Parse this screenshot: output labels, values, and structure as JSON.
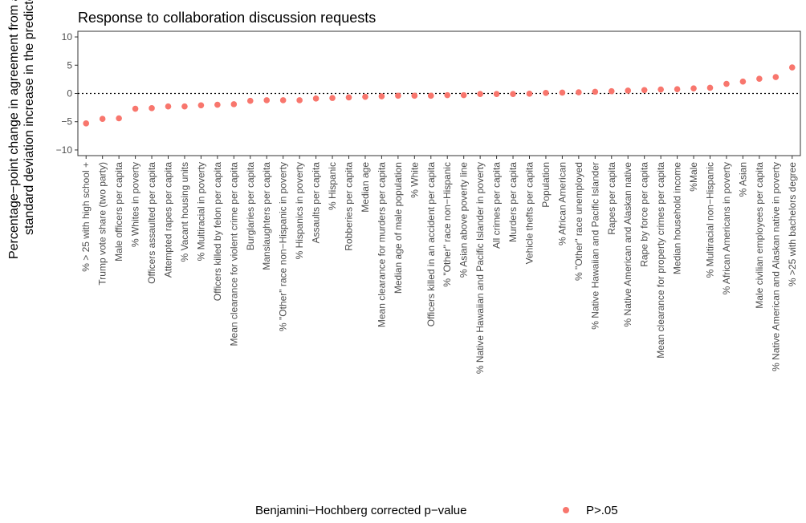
{
  "chart_data": {
    "type": "scatter",
    "title": "Response to collaboration discussion requests",
    "xlabel": "",
    "ylabel": "Percentage−point change in agreement from a one standard deviation increase in the predictor",
    "ylabel_lines": [
      "Percentage−point change in agreement from a one",
      "standard deviation increase in the predictor"
    ],
    "ylim": [
      -11,
      11
    ],
    "yticks": [
      10,
      5,
      0,
      -5,
      -10
    ],
    "ytick_labels": [
      "10",
      "5",
      "0",
      "−5",
      "−10"
    ],
    "reference_line": 0,
    "grid": false,
    "legend_position": "bottom",
    "legend_title": "Benjamini−Hochberg corrected p−value",
    "point_color": "#F8766D",
    "categories": [
      "% > 25 with high school +",
      "Trump vote share (two party)",
      "Male officers per capita",
      "% Whites in poverty",
      "Officers assaulted per capita",
      "Attempted rapes per capita",
      "% Vacant housing units",
      "% Multiracial in poverty",
      "Officers killed by felon per capita",
      "Mean clearance for violent crime per capita",
      "Burglaries per capita",
      "Manslaughters per capita",
      "% \"Other\" race non−Hispanic in poverty",
      "% Hispanics in poverty",
      "Assaults per capita",
      "% Hispanic",
      "Robberies per capita",
      "Median age",
      "Mean clearance for murders per capita",
      "Median age of male population",
      "% White",
      "Officers killed in an accident per capita",
      "% \"Other\" race non−Hispanic",
      "% Asian above poverty line",
      "% Native Hawaiian and Pacific Islander in poverty",
      "All crimes per capita",
      "Murders per capita",
      "Vehicle thefts per capita",
      "Population",
      "% African American",
      "% \"Other\" race unemployed",
      "% Native Hawaiian and Pacific Islander",
      "Rapes per capita",
      "% Native American and Alaskan native",
      "Rape by force per capita",
      "Mean clearance for property crimes per capita",
      "Median household income",
      "%Male",
      "% Multiracial non−Hispanic",
      "% African Americans in poverty",
      "% Asian",
      "Male civilian employees per capita",
      "% Native American and Alaskan native in poverty",
      "% >25 with bachelors degree"
    ],
    "series": [
      {
        "name": "P>.05",
        "values": [
          -5.3,
          -4.5,
          -4.4,
          -2.7,
          -2.6,
          -2.3,
          -2.3,
          -2.1,
          -2.0,
          -1.9,
          -1.3,
          -1.2,
          -1.2,
          -1.2,
          -0.9,
          -0.8,
          -0.7,
          -0.6,
          -0.5,
          -0.4,
          -0.4,
          -0.4,
          -0.3,
          -0.3,
          -0.1,
          -0.1,
          -0.1,
          -0.05,
          0.1,
          0.15,
          0.2,
          0.3,
          0.4,
          0.5,
          0.6,
          0.7,
          0.75,
          0.9,
          1.0,
          1.7,
          2.1,
          2.6,
          2.9,
          4.6
        ]
      }
    ]
  }
}
